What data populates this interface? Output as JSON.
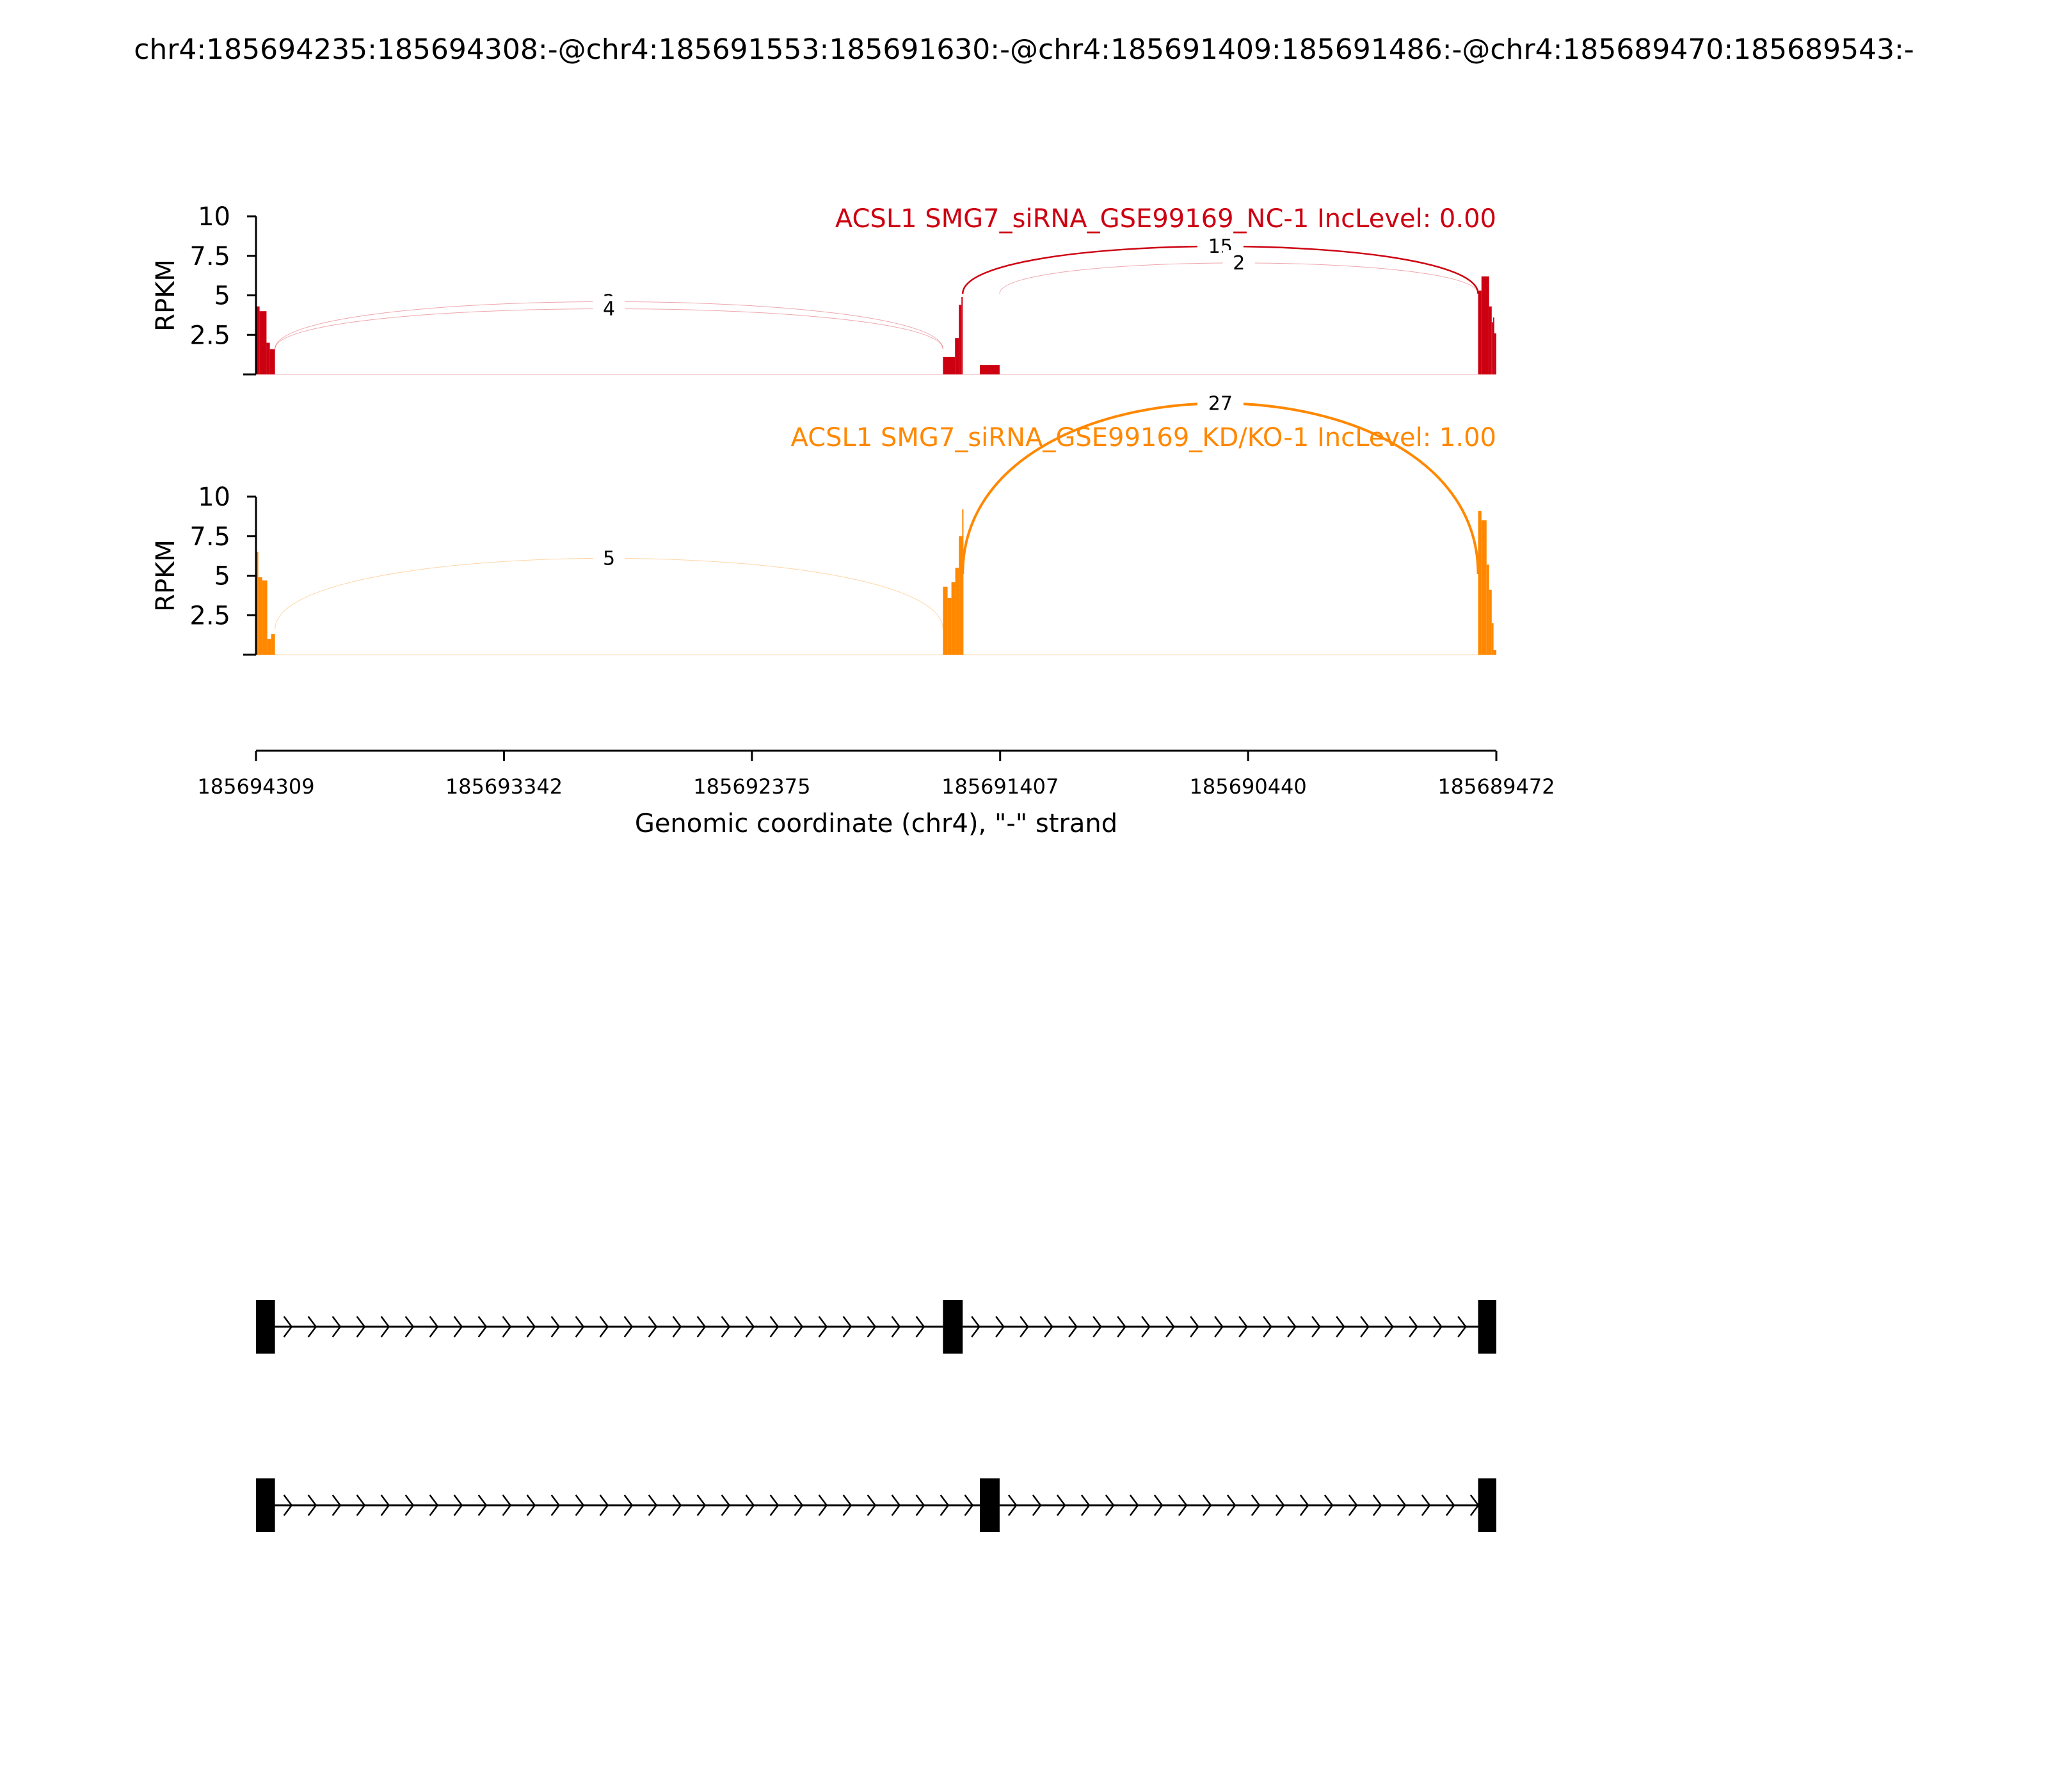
{
  "chart_data": {
    "type": "sashimi",
    "title": "chr4:185694235:185694308:-@chr4:185691553:185691630:-@chr4:185691409:185691486:-@chr4:185689470:185689543:-",
    "xaxis": {
      "label": "Genomic coordinate (chr4), \"-\" strand",
      "range": [
        185694309,
        185689472
      ],
      "ticks": [
        185694309,
        185693342,
        185692375,
        185691407,
        185690440,
        185689472
      ],
      "tick_labels": [
        "185694309",
        "185693342",
        "185692375",
        "185691407",
        "185690440",
        "185689472"
      ]
    },
    "tracks": [
      {
        "name": "ACSL1 SMG7_siRNA_GSE99169_NC-1 IncLevel: 0.00",
        "color": "#cc0011",
        "ylabel": "RPKM",
        "ylim": [
          0,
          10
        ],
        "yticks": [
          2.5,
          5,
          7.5,
          10
        ],
        "ytick_labels": [
          "2.5",
          "5",
          "7.5",
          "10"
        ],
        "coverage": [
          {
            "start": 185694309,
            "end": 185694295,
            "value": 4.3
          },
          {
            "start": 185694295,
            "end": 185694268,
            "value": 4.0
          },
          {
            "start": 185694268,
            "end": 185694255,
            "value": 2.0
          },
          {
            "start": 185694255,
            "end": 185694235,
            "value": 1.6
          },
          {
            "start": 185691630,
            "end": 185691583,
            "value": 1.1
          },
          {
            "start": 185691583,
            "end": 185691568,
            "value": 2.3
          },
          {
            "start": 185691568,
            "end": 185691558,
            "value": 4.4
          },
          {
            "start": 185691558,
            "end": 185691553,
            "value": 4.9
          },
          {
            "start": 185691486,
            "end": 185691409,
            "value": 0.6
          },
          {
            "start": 185689543,
            "end": 185689530,
            "value": 5.3
          },
          {
            "start": 185689530,
            "end": 185689500,
            "value": 6.2
          },
          {
            "start": 185689500,
            "end": 185689490,
            "value": 4.3
          },
          {
            "start": 185689490,
            "end": 185689485,
            "value": 3.3
          },
          {
            "start": 185689485,
            "end": 185689480,
            "value": 3.6
          },
          {
            "start": 185689480,
            "end": 185689472,
            "value": 2.6
          }
        ],
        "junctions": [
          {
            "from": 185694235,
            "to": 185691630,
            "count": 2,
            "label": "2",
            "peak": 3.6
          },
          {
            "from": 185694235,
            "to": 185691630,
            "count": 4,
            "label": "4",
            "peak": 3.3
          },
          {
            "from": 185691553,
            "to": 185689543,
            "count": 15,
            "label": "15",
            "peak": 7.1
          },
          {
            "from": 185691409,
            "to": 185689543,
            "count": 2,
            "label": "2",
            "peak": 6.4
          }
        ]
      },
      {
        "name": "ACSL1 SMG7_siRNA_GSE99169_KD/KO-1 IncLevel: 1.00",
        "color": "#ff8800",
        "ylabel": "RPKM",
        "ylim": [
          0,
          10
        ],
        "yticks": [
          2.5,
          5,
          7.5,
          10
        ],
        "ytick_labels": [
          "2.5",
          "5",
          "7.5",
          "10"
        ],
        "coverage": [
          {
            "start": 185694309,
            "end": 185694300,
            "value": 6.5
          },
          {
            "start": 185694300,
            "end": 185694285,
            "value": 4.9
          },
          {
            "start": 185694285,
            "end": 185694265,
            "value": 4.7
          },
          {
            "start": 185694265,
            "end": 185694250,
            "value": 1.0
          },
          {
            "start": 185694250,
            "end": 185694235,
            "value": 1.3
          },
          {
            "start": 185691630,
            "end": 185691612,
            "value": 4.3
          },
          {
            "start": 185691612,
            "end": 185691597,
            "value": 3.6
          },
          {
            "start": 185691597,
            "end": 185691582,
            "value": 4.6
          },
          {
            "start": 185691582,
            "end": 185691568,
            "value": 5.5
          },
          {
            "start": 185691568,
            "end": 185691555,
            "value": 7.5
          },
          {
            "start": 185691555,
            "end": 185691553,
            "value": 9.2
          },
          {
            "start": 185689543,
            "end": 185689530,
            "value": 9.1
          },
          {
            "start": 185689530,
            "end": 185689510,
            "value": 8.5
          },
          {
            "start": 185689510,
            "end": 185689500,
            "value": 5.7
          },
          {
            "start": 185689500,
            "end": 185689490,
            "value": 4.1
          },
          {
            "start": 185689490,
            "end": 185689483,
            "value": 2.0
          },
          {
            "start": 185689483,
            "end": 185689472,
            "value": 0.3
          }
        ],
        "junctions": [
          {
            "from": 185694235,
            "to": 185691630,
            "count": 5,
            "label": "5",
            "peak": 4.6
          },
          {
            "from": 185691553,
            "to": 185689543,
            "count": 27,
            "label": "27",
            "peak": 12.3
          }
        ]
      }
    ],
    "isoforms": [
      {
        "exons": [
          [
            185694309,
            185694235
          ],
          [
            185691630,
            185691553
          ],
          [
            185689543,
            185689472
          ]
        ]
      },
      {
        "exons": [
          [
            185694309,
            185694235
          ],
          [
            185691486,
            185691409
          ],
          [
            185689543,
            185689472
          ]
        ]
      }
    ]
  }
}
